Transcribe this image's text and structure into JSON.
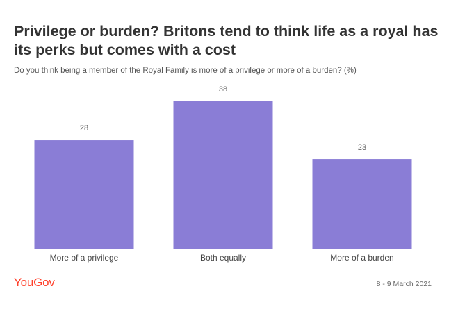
{
  "header": {
    "title": "Privilege or burden? Britons tend to think life as a royal has its perks but comes with a cost",
    "subtitle": "Do you think being a member of the Royal Family is more of a privilege or more of a burden? (%)"
  },
  "chart_data": {
    "type": "bar",
    "categories": [
      "More of a privilege",
      "Both equally",
      "More of a burden"
    ],
    "values": [
      28,
      38,
      23
    ],
    "ylim": [
      0,
      40
    ],
    "grid": false,
    "legend": "none",
    "bar_color": "#8a7dd6"
  },
  "footer": {
    "brand": "YouGov",
    "brand_color": "#ff412c",
    "date": "8 - 9 March 2021"
  }
}
